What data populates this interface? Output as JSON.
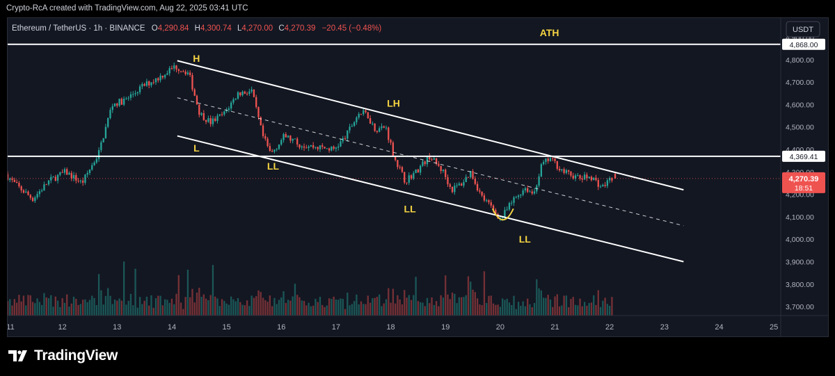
{
  "caption": "Crypto-RcA created with TradingView.com, Aug 22, 2025 03:41 UTC",
  "brand": "TradingView",
  "legend": {
    "symbol": "Ethereum / TetherUS · 1h · BINANCE",
    "o_label": "O",
    "o": "4,290.84",
    "h_label": "H",
    "h": "4,300.74",
    "l_label": "L",
    "l": "4,270.00",
    "c_label": "C",
    "c": "4,270.39",
    "change": "−20.45 (−0.48%)"
  },
  "currency_button": "USDT",
  "colors": {
    "up": "#26a69a",
    "down": "#ef5350",
    "background": "#131722",
    "annotation": "#f5d442",
    "drawing": "#ffffff",
    "last_price": "#ef5350"
  },
  "chart_data": {
    "type": "candlestick",
    "x_ticks": [
      "11",
      "12",
      "13",
      "14",
      "15",
      "16",
      "17",
      "18",
      "19",
      "20",
      "21",
      "22",
      "23",
      "24",
      "25"
    ],
    "y_ticks": [
      "3,700.00",
      "3,800.00",
      "3,900.00",
      "4,000.00",
      "4,100.00",
      "4,200.00",
      "4,300.00",
      "4,400.00",
      "4,500.00",
      "4,600.00",
      "4,700.00",
      "4,800.00",
      "4,900.00"
    ],
    "ylim": [
      3660,
      4985
    ],
    "xlim": [
      11,
      25.1
    ],
    "keypoints": [
      [
        11.0,
        4290
      ],
      [
        11.2,
        4240
      ],
      [
        11.5,
        4180
      ],
      [
        11.8,
        4260
      ],
      [
        12.1,
        4300
      ],
      [
        12.4,
        4250
      ],
      [
        12.7,
        4380
      ],
      [
        12.95,
        4600
      ],
      [
        13.2,
        4620
      ],
      [
        13.5,
        4680
      ],
      [
        13.8,
        4720
      ],
      [
        14.1,
        4770
      ],
      [
        14.35,
        4740
      ],
      [
        14.55,
        4560
      ],
      [
        14.75,
        4520
      ],
      [
        15.0,
        4560
      ],
      [
        15.25,
        4650
      ],
      [
        15.5,
        4660
      ],
      [
        15.7,
        4460
      ],
      [
        15.85,
        4380
      ],
      [
        16.1,
        4460
      ],
      [
        16.4,
        4420
      ],
      [
        16.7,
        4410
      ],
      [
        17.0,
        4400
      ],
      [
        17.2,
        4450
      ],
      [
        17.45,
        4560
      ],
      [
        17.6,
        4560
      ],
      [
        17.75,
        4490
      ],
      [
        17.95,
        4500
      ],
      [
        18.1,
        4370
      ],
      [
        18.3,
        4260
      ],
      [
        18.5,
        4300
      ],
      [
        18.75,
        4370
      ],
      [
        19.0,
        4300
      ],
      [
        19.15,
        4220
      ],
      [
        19.35,
        4250
      ],
      [
        19.5,
        4300
      ],
      [
        19.7,
        4190
      ],
      [
        19.85,
        4150
      ],
      [
        20.05,
        4090
      ],
      [
        20.3,
        4180
      ],
      [
        20.5,
        4230
      ],
      [
        20.65,
        4200
      ],
      [
        20.8,
        4330
      ],
      [
        20.95,
        4360
      ],
      [
        21.2,
        4300
      ],
      [
        21.5,
        4270
      ],
      [
        21.7,
        4280
      ],
      [
        21.9,
        4230
      ],
      [
        22.1,
        4280
      ]
    ],
    "last_candle": {
      "open": 4290.84,
      "high": 4300.74,
      "low": 4270.0,
      "close": 4270.39
    },
    "levels": [
      {
        "price": 4868.0,
        "label": "4,868.00"
      },
      {
        "price": 4369.41,
        "label": "4,369.41"
      }
    ],
    "last_price_label": "4,270.39",
    "countdown": "18:51",
    "channel": {
      "upper": [
        [
          14.1,
          4795
        ],
        [
          23.35,
          4220
        ]
      ],
      "lower": [
        [
          14.1,
          4460
        ],
        [
          23.35,
          3900
        ]
      ],
      "mid": [
        [
          14.1,
          4630
        ],
        [
          23.35,
          4060
        ]
      ]
    },
    "annotations": [
      {
        "text": "ATH",
        "x": 20.9,
        "y": 4905
      },
      {
        "text": "H",
        "x": 14.45,
        "y": 4790
      },
      {
        "text": "LH",
        "x": 18.05,
        "y": 4590
      },
      {
        "text": "L",
        "x": 14.45,
        "y": 4390
      },
      {
        "text": "LL",
        "x": 15.85,
        "y": 4310
      },
      {
        "text": "LL",
        "x": 18.35,
        "y": 4120
      },
      {
        "text": "LL",
        "x": 20.45,
        "y": 3985
      }
    ],
    "bottom_arc": {
      "x": 20.05,
      "y": 4105
    }
  }
}
